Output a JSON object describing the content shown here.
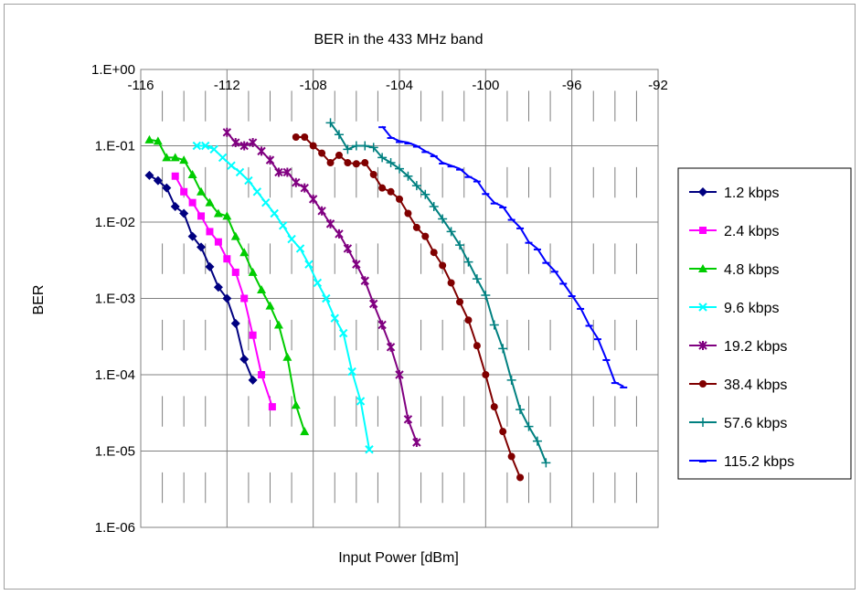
{
  "chart_data": {
    "type": "line",
    "title": "BER in the 433 MHz band",
    "xlabel": "Input Power [dBm]",
    "ylabel": "BER",
    "xlim": [
      -116,
      -92
    ],
    "ylim": [
      1e-06,
      1
    ],
    "y_scale": "log",
    "x_axis_position": "top",
    "grid": true,
    "legend_position": "right",
    "x_ticks": [
      -116,
      -112,
      -108,
      -104,
      -100,
      -96,
      -92
    ],
    "x_tick_labels": [
      "-116",
      "-112",
      "-108",
      "-104",
      "-100",
      "-96",
      "-92"
    ],
    "y_ticks": [
      1,
      0.1,
      0.01,
      0.001,
      0.0001,
      1e-05,
      1e-06
    ],
    "y_tick_labels": [
      "1.E+00",
      "1.E-01",
      "1.E-02",
      "1.E-03",
      "1.E-04",
      "1.E-05",
      "1.E-06"
    ],
    "series": [
      {
        "name": "1.2 kbps",
        "color": "#000080",
        "marker": "diamond",
        "x": [
          -115.6,
          -115.2,
          -114.8,
          -114.4,
          -114.0,
          -113.6,
          -113.2,
          -112.8,
          -112.4,
          -112.0,
          -111.6,
          -111.2,
          -110.8
        ],
        "y": [
          0.041,
          0.035,
          0.028,
          0.016,
          0.013,
          0.0065,
          0.0047,
          0.0026,
          0.0014,
          0.001,
          0.00047,
          0.00016,
          8.5e-05
        ]
      },
      {
        "name": "2.4 kbps",
        "color": "#ff00ff",
        "marker": "square",
        "x": [
          -114.4,
          -114.0,
          -113.6,
          -113.2,
          -112.8,
          -112.4,
          -112.0,
          -111.6,
          -111.2,
          -110.8,
          -110.4,
          -109.9
        ],
        "y": [
          0.04,
          0.025,
          0.018,
          0.012,
          0.0075,
          0.0055,
          0.0033,
          0.0022,
          0.001,
          0.00033,
          0.0001,
          3.8e-05
        ]
      },
      {
        "name": "4.8 kbps",
        "color": "#00cc00",
        "marker": "triangle",
        "x": [
          -115.6,
          -115.2,
          -114.8,
          -114.4,
          -114.0,
          -113.6,
          -113.2,
          -112.8,
          -112.4,
          -112.0,
          -111.6,
          -111.2,
          -110.8,
          -110.4,
          -110.0,
          -109.6,
          -109.2,
          -108.8,
          -108.4
        ],
        "y": [
          0.12,
          0.115,
          0.07,
          0.07,
          0.065,
          0.042,
          0.025,
          0.018,
          0.013,
          0.012,
          0.0065,
          0.004,
          0.0022,
          0.0013,
          0.0008,
          0.00045,
          0.00017,
          4e-05,
          1.8e-05
        ]
      },
      {
        "name": "9.6 kbps",
        "color": "#00ffff",
        "marker": "x",
        "x": [
          -113.4,
          -113.0,
          -112.6,
          -112.2,
          -111.8,
          -111.4,
          -111.0,
          -110.6,
          -110.2,
          -109.8,
          -109.4,
          -109.0,
          -108.6,
          -108.2,
          -107.8,
          -107.4,
          -107.0,
          -106.6,
          -106.2,
          -105.8,
          -105.4
        ],
        "y": [
          0.1,
          0.1,
          0.09,
          0.07,
          0.055,
          0.045,
          0.035,
          0.025,
          0.018,
          0.013,
          0.009,
          0.006,
          0.0045,
          0.0028,
          0.0016,
          0.001,
          0.00055,
          0.00035,
          0.00011,
          4.5e-05,
          1.05e-05
        ]
      },
      {
        "name": "19.2 kbps",
        "color": "#800080",
        "marker": "star",
        "x": [
          -112.0,
          -111.6,
          -111.2,
          -110.8,
          -110.4,
          -110.0,
          -109.6,
          -109.2,
          -108.8,
          -108.4,
          -108.0,
          -107.6,
          -107.2,
          -106.8,
          -106.4,
          -106.0,
          -105.6,
          -105.2,
          -104.8,
          -104.4,
          -104.0,
          -103.6,
          -103.2
        ],
        "y": [
          0.15,
          0.11,
          0.1,
          0.11,
          0.085,
          0.065,
          0.045,
          0.045,
          0.033,
          0.028,
          0.02,
          0.014,
          0.0095,
          0.007,
          0.0045,
          0.0028,
          0.0017,
          0.00085,
          0.00045,
          0.00023,
          0.0001,
          2.6e-05,
          1.3e-05
        ]
      },
      {
        "name": "38.4 kbps",
        "color": "#800000",
        "marker": "circle",
        "x": [
          -108.8,
          -108.4,
          -108.0,
          -107.6,
          -107.2,
          -106.8,
          -106.4,
          -106.0,
          -105.6,
          -105.2,
          -104.8,
          -104.4,
          -104.0,
          -103.6,
          -103.2,
          -102.8,
          -102.4,
          -102.0,
          -101.6,
          -101.2,
          -100.8,
          -100.4,
          -100.0,
          -99.6,
          -99.2,
          -98.8,
          -98.4
        ],
        "y": [
          0.13,
          0.13,
          0.1,
          0.08,
          0.06,
          0.075,
          0.06,
          0.058,
          0.06,
          0.042,
          0.028,
          0.025,
          0.02,
          0.013,
          0.0085,
          0.0065,
          0.004,
          0.0027,
          0.0016,
          0.0009,
          0.00052,
          0.00024,
          0.0001,
          3.8e-05,
          1.8e-05,
          8.5e-06,
          4.5e-06
        ]
      },
      {
        "name": "57.6 kbps",
        "color": "#008080",
        "marker": "plus",
        "x": [
          -107.2,
          -106.8,
          -106.4,
          -106.0,
          -105.6,
          -105.2,
          -104.8,
          -104.4,
          -104.0,
          -103.6,
          -103.2,
          -102.8,
          -102.4,
          -102.0,
          -101.6,
          -101.2,
          -100.8,
          -100.4,
          -100.0,
          -99.6,
          -99.2,
          -98.8,
          -98.4,
          -98.0,
          -97.6,
          -97.2
        ],
        "y": [
          0.2,
          0.14,
          0.09,
          0.1,
          0.1,
          0.095,
          0.07,
          0.06,
          0.05,
          0.04,
          0.03,
          0.023,
          0.016,
          0.011,
          0.0075,
          0.005,
          0.003,
          0.0018,
          0.0011,
          0.00045,
          0.00022,
          8.5e-05,
          3.5e-05,
          2.1e-05,
          1.35e-05,
          7e-06
        ]
      },
      {
        "name": "115.2 kbps",
        "color": "#0000ff",
        "marker": "dash",
        "x": [
          -104.8,
          -104.4,
          -104.0,
          -103.6,
          -103.2,
          -102.8,
          -102.4,
          -102.0,
          -101.6,
          -101.2,
          -100.8,
          -100.4,
          -100.0,
          -99.6,
          -99.2,
          -98.8,
          -98.4,
          -98.0,
          -97.6,
          -97.2,
          -96.8,
          -96.4,
          -96.0,
          -95.6,
          -95.2,
          -94.8,
          -94.4,
          -94.0,
          -93.6
        ],
        "y": [
          0.18,
          0.13,
          0.115,
          0.11,
          0.1,
          0.085,
          0.075,
          0.06,
          0.055,
          0.05,
          0.04,
          0.035,
          0.024,
          0.018,
          0.016,
          0.011,
          0.0085,
          0.0055,
          0.0045,
          0.003,
          0.0023,
          0.0016,
          0.0011,
          0.00075,
          0.00045,
          0.0003,
          0.00016,
          8e-05,
          7e-05
        ]
      }
    ]
  }
}
